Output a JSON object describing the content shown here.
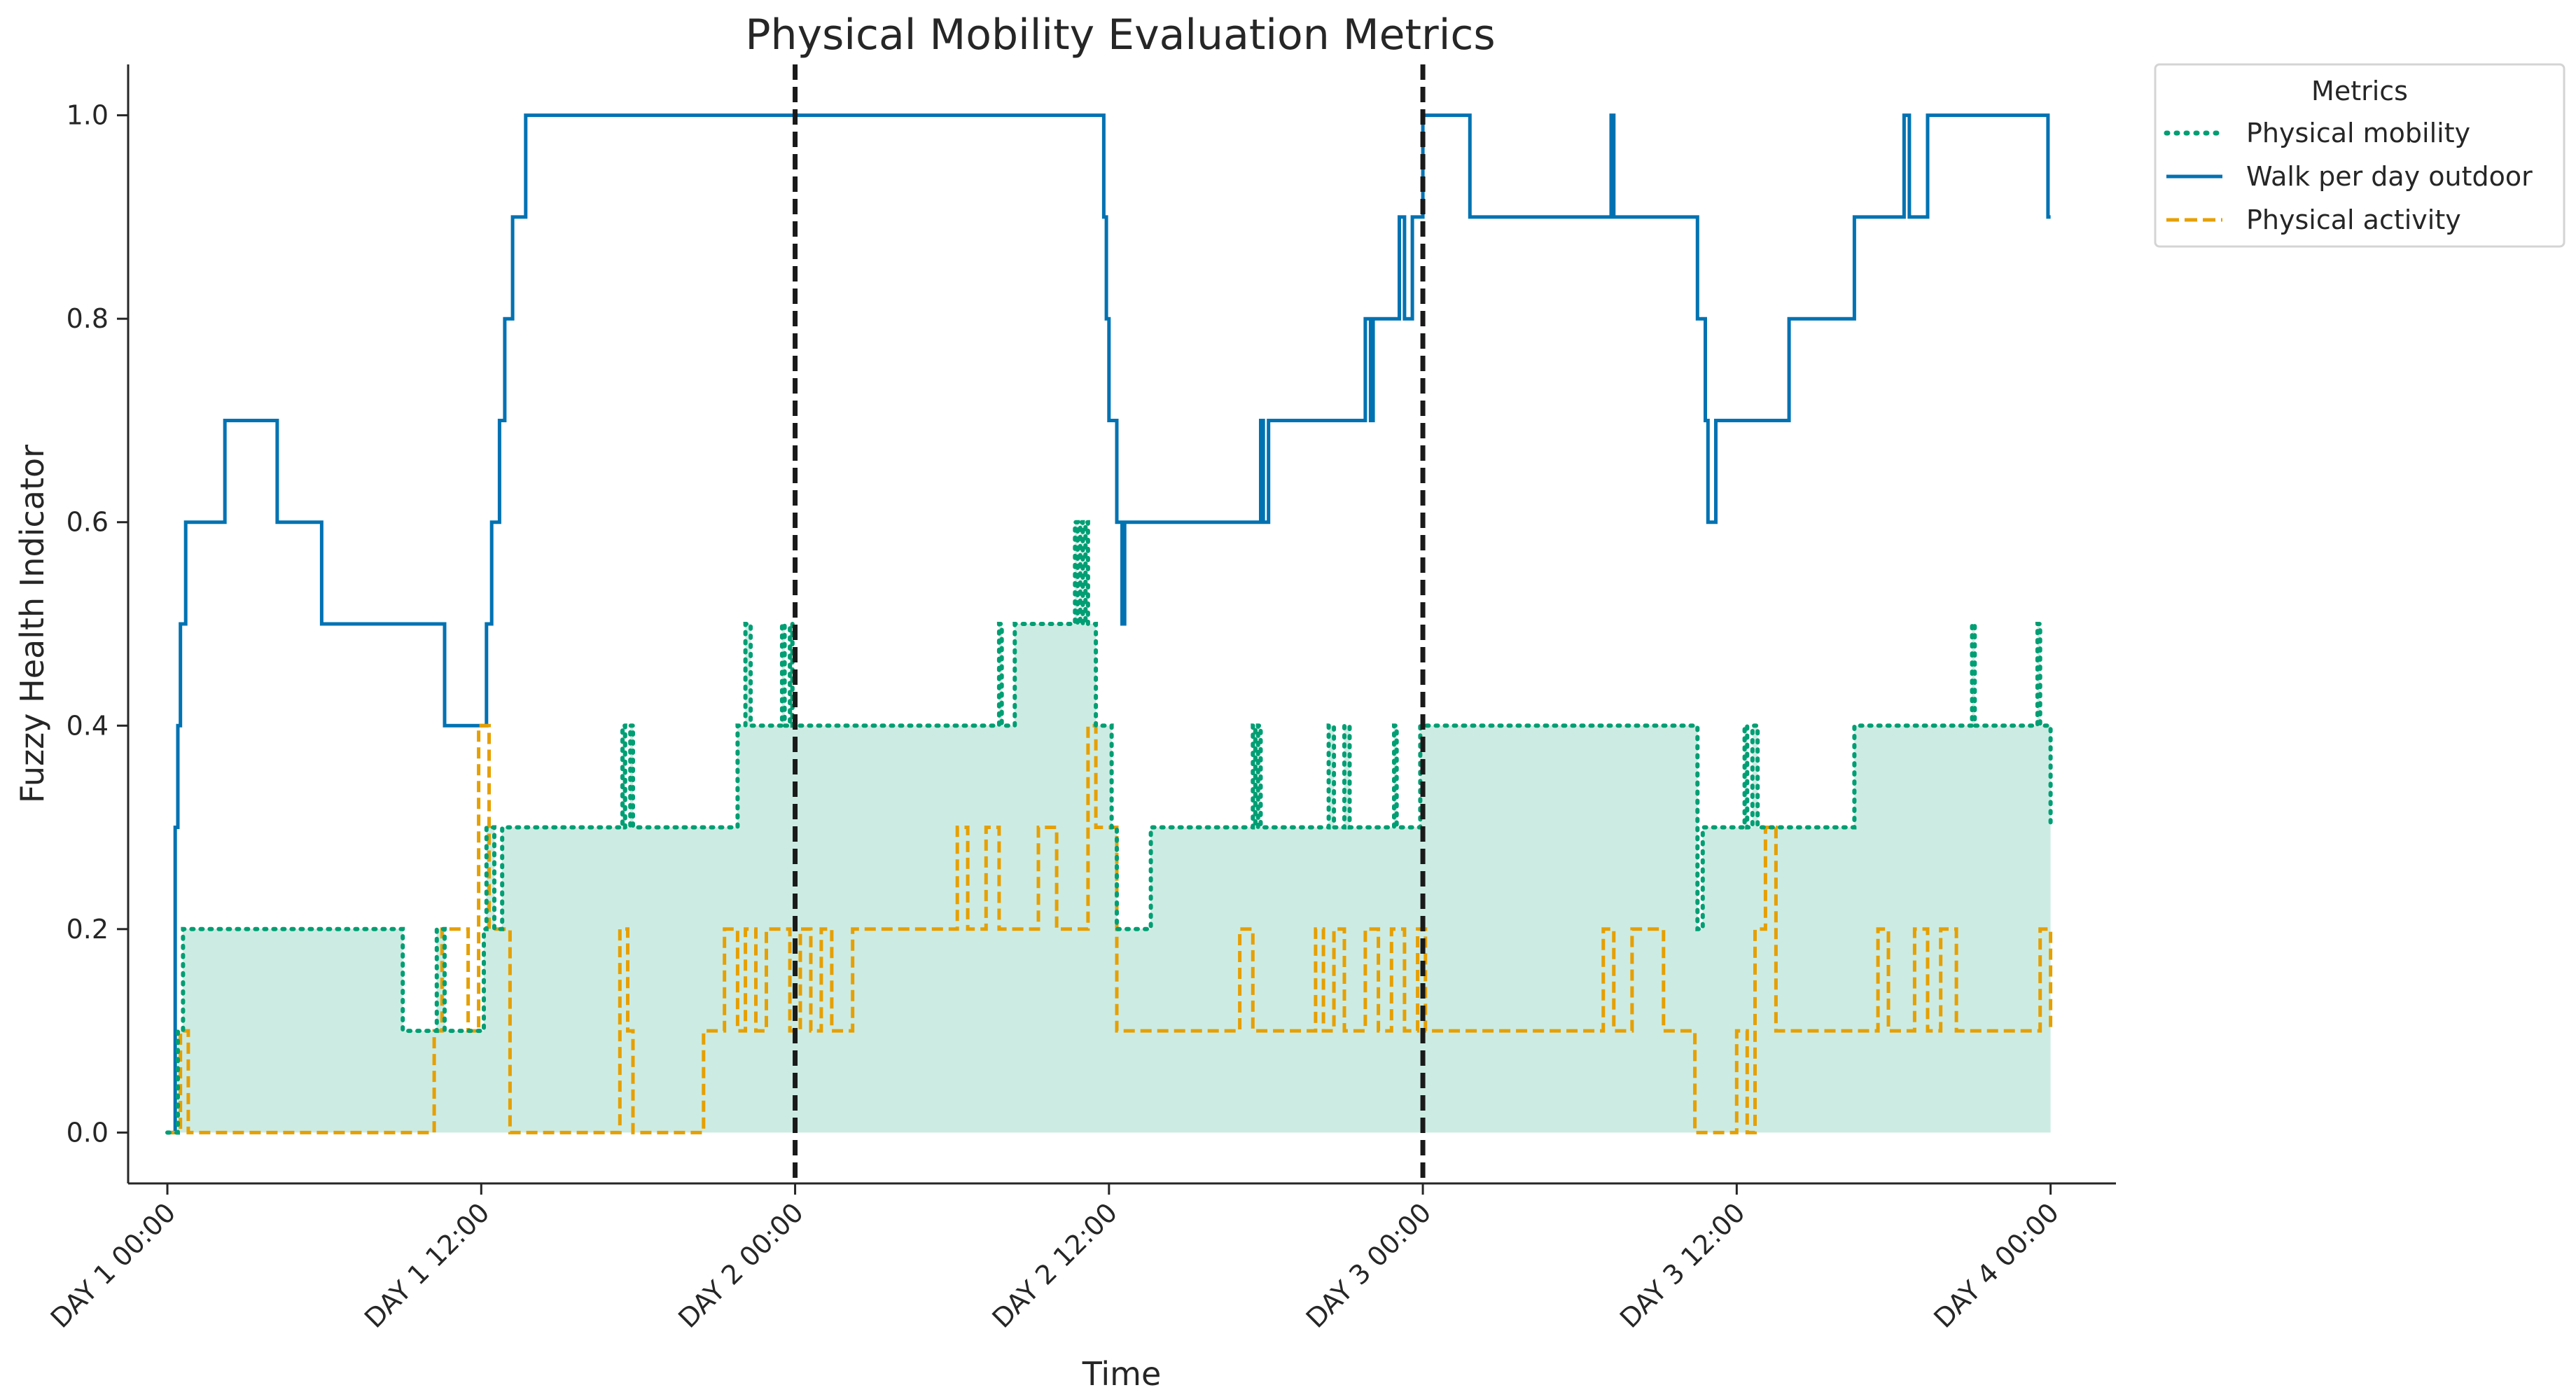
{
  "chart_data": {
    "type": "line",
    "title": "Physical Mobility Evaluation Metrics",
    "xlabel": "Time",
    "ylabel": "Fuzzy Health Indicator",
    "xlim": [
      -1.5,
      74.5
    ],
    "ylim": [
      -0.05,
      1.05
    ],
    "x_units": "hours since DAY 1 00:00",
    "xticks": [
      {
        "x": 0,
        "label": "DAY 1 00:00"
      },
      {
        "x": 12,
        "label": "DAY 1 12:00"
      },
      {
        "x": 24,
        "label": "DAY 2 00:00"
      },
      {
        "x": 36,
        "label": "DAY 2 12:00"
      },
      {
        "x": 48,
        "label": "DAY 3 00:00"
      },
      {
        "x": 60,
        "label": "DAY 3 12:00"
      },
      {
        "x": 72,
        "label": "DAY 4 00:00"
      }
    ],
    "yticks": [
      {
        "y": 0.0,
        "label": "0.0"
      },
      {
        "y": 0.2,
        "label": "0.2"
      },
      {
        "y": 0.4,
        "label": "0.4"
      },
      {
        "y": 0.6,
        "label": "0.6"
      },
      {
        "y": 0.8,
        "label": "0.8"
      },
      {
        "y": 1.0,
        "label": "1.0"
      }
    ],
    "vlines": [
      24,
      48
    ],
    "grid": false,
    "legend": {
      "title": "Metrics",
      "placement": "outside-top-right"
    },
    "series": [
      {
        "name": "Physical mobility",
        "style": "dotted",
        "color": "#009E73",
        "fill": true,
        "x": [
          0,
          0.4,
          0.6,
          9.0,
          9.1,
          10.3,
          10.4,
          10.6,
          10.7,
          12.1,
          12.2,
          12.3,
          12.5,
          12.8,
          13.3,
          17.4,
          17.5,
          17.7,
          17.8,
          21.8,
          22.1,
          22.3,
          22.4,
          23.5,
          23.6,
          23.8,
          23.9,
          31.8,
          31.9,
          32.3,
          32.4,
          34.7,
          34.8,
          34.9,
          35.0,
          35.1,
          35.2,
          35.4,
          35.5,
          36.1,
          36.3,
          36.7,
          37.6,
          38.1,
          41.5,
          41.6,
          41.7,
          41.8,
          44.4,
          44.6,
          45.0,
          45.2,
          46.9,
          47.0,
          47.7,
          47.9,
          49.0,
          49.3,
          58.5,
          58.7,
          60.3,
          60.4,
          60.6,
          60.8,
          61.0,
          62.3,
          64.5,
          64.7,
          67.0,
          67.2,
          69.0,
          69.1,
          71.5,
          71.6,
          72.0
        ],
        "y": [
          0,
          0.1,
          0.2,
          0.1,
          0.1,
          0.2,
          0.2,
          0.1,
          0.1,
          0.2,
          0.3,
          0.3,
          0.2,
          0.3,
          0.3,
          0.4,
          0.3,
          0.4,
          0.3,
          0.4,
          0.5,
          0.4,
          0.4,
          0.5,
          0.4,
          0.5,
          0.4,
          0.5,
          0.4,
          0.4,
          0.5,
          0.6,
          0.5,
          0.6,
          0.5,
          0.6,
          0.5,
          0.5,
          0.4,
          0.3,
          0.2,
          0.2,
          0.3,
          0.3,
          0.4,
          0.3,
          0.4,
          0.3,
          0.4,
          0.3,
          0.4,
          0.3,
          0.4,
          0.3,
          0.3,
          0.4,
          0.4,
          0.4,
          0.2,
          0.3,
          0.4,
          0.3,
          0.4,
          0.3,
          0.3,
          0.3,
          0.4,
          0.4,
          0.4,
          0.4,
          0.5,
          0.4,
          0.5,
          0.4,
          0.3
        ]
      },
      {
        "name": "Walk per day outdoor",
        "style": "solid",
        "color": "#0072B2",
        "fill": false,
        "x": [
          0,
          0.3,
          0.4,
          0.5,
          0.7,
          2.2,
          4.2,
          5.9,
          10.6,
          12.2,
          12.4,
          12.7,
          12.9,
          13.2,
          13.7,
          14.0,
          14.7,
          35.8,
          35.9,
          36.0,
          36.3,
          36.5,
          36.6,
          41.8,
          41.9,
          42.1,
          45.8,
          46.0,
          46.1,
          46.2,
          47.1,
          47.3,
          47.6,
          47.8,
          48.0,
          49.8,
          55.2,
          55.3,
          58.5,
          58.8,
          58.9,
          59.2,
          60.3,
          62.0,
          64.5,
          66.4,
          66.6,
          67.3,
          70.0,
          71.9,
          72.0
        ],
        "y": [
          0,
          0.3,
          0.4,
          0.5,
          0.6,
          0.7,
          0.6,
          0.5,
          0.4,
          0.5,
          0.6,
          0.7,
          0.8,
          0.9,
          1.0,
          1.0,
          1.0,
          0.9,
          0.8,
          0.7,
          0.6,
          0.5,
          0.6,
          0.7,
          0.6,
          0.7,
          0.8,
          0.7,
          0.8,
          0.8,
          0.9,
          0.8,
          0.9,
          0.9,
          1.0,
          0.9,
          1.0,
          0.9,
          0.8,
          0.7,
          0.6,
          0.7,
          0.7,
          0.8,
          0.9,
          1.0,
          0.9,
          1.0,
          1.0,
          0.9,
          0.9
        ]
      },
      {
        "name": "Physical activity",
        "style": "dashed",
        "color": "#E69F00",
        "fill": false,
        "x": [
          0,
          0.5,
          0.8,
          10.2,
          10.5,
          11.5,
          11.9,
          12.3,
          13.1,
          17.3,
          17.6,
          17.8,
          20.5,
          21.3,
          21.8,
          22.1,
          22.5,
          22.9,
          23.8,
          24.2,
          24.6,
          25.0,
          25.4,
          26.2,
          30.2,
          30.6,
          31.3,
          31.8,
          33.3,
          34.0,
          35.2,
          35.5,
          36.3,
          41.0,
          41.5,
          43.9,
          44.2,
          44.6,
          45.0,
          45.8,
          46.3,
          46.8,
          47.3,
          47.8,
          48.1,
          48.4,
          54.9,
          55.3,
          56.0,
          57.2,
          58.4,
          60.0,
          60.4,
          60.7,
          61.1,
          61.5,
          62.3,
          65.4,
          65.8,
          66.8,
          67.3,
          67.8,
          68.4,
          71.6,
          72.0
        ],
        "y": [
          0,
          0.1,
          0,
          0.1,
          0.2,
          0.1,
          0.4,
          0.2,
          0,
          0.2,
          0.1,
          0,
          0.1,
          0.2,
          0.1,
          0.2,
          0.1,
          0.2,
          0.1,
          0.2,
          0.1,
          0.2,
          0.1,
          0.2,
          0.3,
          0.2,
          0.3,
          0.2,
          0.3,
          0.2,
          0.4,
          0.3,
          0.1,
          0.2,
          0.1,
          0.2,
          0.1,
          0.2,
          0.1,
          0.2,
          0.1,
          0.2,
          0.1,
          0.2,
          0.1,
          0.1,
          0.2,
          0.1,
          0.2,
          0.1,
          0,
          0.1,
          0,
          0.2,
          0.3,
          0.1,
          0.1,
          0.2,
          0.1,
          0.2,
          0.1,
          0.2,
          0.1,
          0.2,
          0.1
        ]
      }
    ]
  }
}
